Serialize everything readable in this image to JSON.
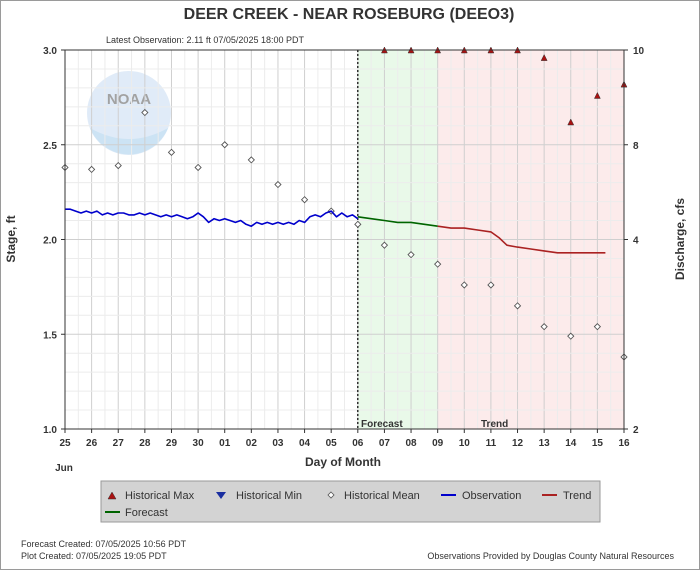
{
  "chart_data": {
    "type": "line",
    "title": "DEER CREEK - NEAR ROSEBURG  (DEEO3)",
    "subtitle": "Latest Observation: 2.11 ft 07/05/2025 18:00 PDT",
    "xlabel": "Day of Month",
    "ylabel_left": "Stage, ft",
    "ylabel_right": "Discharge, cfs",
    "month_label": "Jun",
    "x_ticks": [
      "25",
      "26",
      "27",
      "28",
      "29",
      "30",
      "01",
      "02",
      "03",
      "04",
      "05",
      "06",
      "07",
      "08",
      "09",
      "10",
      "11",
      "12",
      "13",
      "14",
      "15",
      "16"
    ],
    "xlim": [
      0,
      21
    ],
    "ylim": [
      1.0,
      3.0
    ],
    "y_ticks": [
      "1.0",
      "1.5",
      "2.0",
      "2.5",
      "3.0"
    ],
    "y2_ticks": [
      "2",
      "4",
      "8",
      "10"
    ],
    "y2_tick_stage": [
      1.0,
      2.0,
      2.5,
      3.0
    ],
    "grid": true,
    "regions": [
      {
        "label": "Forecast",
        "from": 11,
        "to": 14,
        "color": "#e9f9e9"
      },
      {
        "label": "Trend",
        "from": 14,
        "to": 21,
        "color": "#fcebeb"
      }
    ],
    "latest_observation_day": 11,
    "series": [
      {
        "name": "Observation",
        "color": "#0000cc",
        "x": [
          0,
          0.2,
          0.4,
          0.6,
          0.8,
          1,
          1.2,
          1.4,
          1.6,
          1.8,
          2,
          2.2,
          2.4,
          2.6,
          2.8,
          3,
          3.2,
          3.4,
          3.6,
          3.8,
          4,
          4.2,
          4.4,
          4.6,
          4.8,
          5,
          5.2,
          5.4,
          5.6,
          5.8,
          6,
          6.2,
          6.4,
          6.6,
          6.8,
          7,
          7.2,
          7.4,
          7.6,
          7.8,
          8,
          8.2,
          8.4,
          8.6,
          8.8,
          9,
          9.2,
          9.4,
          9.6,
          9.8,
          10,
          10.2,
          10.4,
          10.6,
          10.8,
          11
        ],
        "values": [
          2.16,
          2.16,
          2.15,
          2.14,
          2.15,
          2.14,
          2.15,
          2.13,
          2.14,
          2.13,
          2.14,
          2.14,
          2.13,
          2.13,
          2.14,
          2.13,
          2.14,
          2.13,
          2.12,
          2.13,
          2.12,
          2.13,
          2.12,
          2.11,
          2.12,
          2.14,
          2.12,
          2.09,
          2.11,
          2.1,
          2.11,
          2.1,
          2.09,
          2.1,
          2.08,
          2.07,
          2.09,
          2.08,
          2.09,
          2.08,
          2.09,
          2.08,
          2.09,
          2.08,
          2.1,
          2.09,
          2.12,
          2.13,
          2.12,
          2.14,
          2.15,
          2.12,
          2.14,
          2.12,
          2.13,
          2.11
        ]
      },
      {
        "name": "Forecast",
        "color": "#006400",
        "x": [
          11,
          11.5,
          12,
          12.5,
          13,
          13.5,
          14
        ],
        "values": [
          2.12,
          2.11,
          2.1,
          2.09,
          2.09,
          2.08,
          2.07
        ]
      },
      {
        "name": "Trend",
        "color": "#aa2222",
        "x": [
          14,
          14.5,
          15,
          15.5,
          16,
          16.3,
          16.6,
          17,
          17.5,
          18,
          18.5,
          19,
          19.5,
          20,
          20.3
        ],
        "values": [
          2.07,
          2.06,
          2.06,
          2.05,
          2.04,
          2.01,
          1.97,
          1.96,
          1.95,
          1.94,
          1.93,
          1.93,
          1.93,
          1.93,
          1.93
        ]
      }
    ],
    "historical_max": {
      "name": "Historical Max",
      "color": "#aa1111",
      "x": [
        12,
        13,
        14,
        15,
        16,
        17,
        18,
        19,
        20,
        21
      ],
      "values": [
        3.0,
        3.0,
        3.0,
        3.0,
        3.0,
        3.0,
        2.96,
        2.62,
        2.76,
        2.82
      ]
    },
    "historical_min": {
      "name": "Historical Min",
      "color": "#1a2ea0",
      "x": [],
      "values": []
    },
    "historical_mean": {
      "name": "Historical Mean",
      "color": "#555555",
      "x": [
        0,
        1,
        2,
        3,
        4,
        5,
        6,
        7,
        8,
        9,
        10,
        11,
        12,
        13,
        14,
        15,
        16,
        17,
        18,
        19,
        20,
        21
      ],
      "values": [
        2.38,
        2.37,
        2.39,
        2.67,
        2.46,
        2.38,
        2.5,
        2.42,
        2.29,
        2.21,
        2.15,
        2.08,
        1.97,
        1.92,
        1.87,
        1.76,
        1.76,
        1.65,
        1.54,
        1.49,
        1.54,
        1.38
      ]
    },
    "legend": {
      "placement": "bottom",
      "items": [
        {
          "label": "Historical Max",
          "symbol": "triangle-up",
          "color": "#aa1111"
        },
        {
          "label": "Historical Min",
          "symbol": "triangle-down",
          "color": "#1a2ea0"
        },
        {
          "label": "Historical Mean",
          "symbol": "diamond",
          "color": "#555555"
        },
        {
          "label": "Observation",
          "symbol": "line",
          "color": "#0000cc"
        },
        {
          "label": "Trend",
          "symbol": "line",
          "color": "#aa2222"
        },
        {
          "label": "Forecast",
          "symbol": "line",
          "color": "#006400"
        }
      ]
    }
  },
  "footer": {
    "forecast_created": "Forecast Created: 07/05/2025 10:56 PDT",
    "plot_created": "Plot Created: 07/05/2025 19:05 PDT",
    "provider": "Observations Provided by Douglas County Natural Resources"
  },
  "logo": {
    "text": "NOAA",
    "color": "#7fa8d9"
  }
}
